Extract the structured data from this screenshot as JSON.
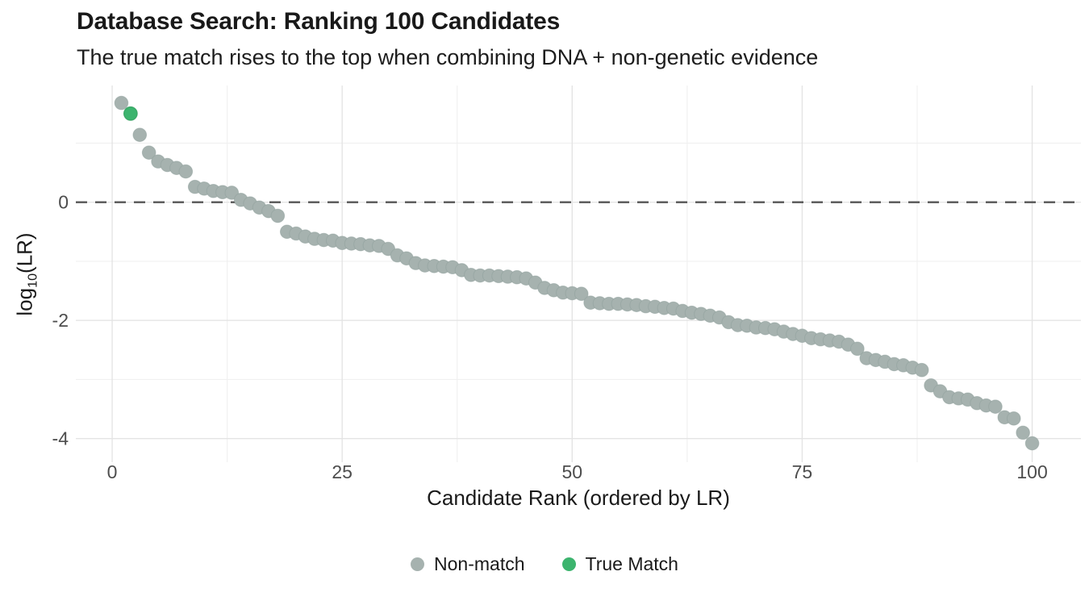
{
  "header": {
    "title": "Database Search: Ranking 100 Candidates",
    "subtitle": "The true match rises to the top when combining DNA + non-genetic evidence"
  },
  "chart_data": {
    "type": "scatter",
    "title": "Database Search: Ranking 100 Candidates",
    "subtitle": "The true match rises to the top when combining DNA + non-genetic evidence",
    "xlabel": "Candidate Rank (ordered by LR)",
    "ylabel": "log10(LR)",
    "ylabel_parts": {
      "base": "log",
      "subscript": "10",
      "rest": "(LR)"
    },
    "xlim": [
      -3.95,
      105.3
    ],
    "ylim": [
      -4.4,
      1.975
    ],
    "x_ticks": [
      0,
      25,
      50,
      75,
      100
    ],
    "x_minor_ticks": [
      12.5,
      37.5,
      62.5,
      87.5
    ],
    "y_ticks": [
      0,
      -2,
      -4
    ],
    "y_minor_ticks": [
      1,
      -1,
      -3
    ],
    "grid": true,
    "legend_position": "bottom",
    "reference_line": {
      "y": 0,
      "style": "dashed"
    },
    "true_match_rank": 2,
    "values": [
      1.68,
      1.5,
      1.14,
      0.84,
      0.69,
      0.63,
      0.58,
      0.52,
      0.26,
      0.23,
      0.19,
      0.17,
      0.16,
      0.04,
      -0.02,
      -0.09,
      -0.15,
      -0.23,
      -0.5,
      -0.53,
      -0.58,
      -0.62,
      -0.64,
      -0.65,
      -0.69,
      -0.7,
      -0.71,
      -0.73,
      -0.74,
      -0.79,
      -0.9,
      -0.95,
      -1.03,
      -1.07,
      -1.08,
      -1.09,
      -1.1,
      -1.15,
      -1.23,
      -1.24,
      -1.24,
      -1.25,
      -1.26,
      -1.27,
      -1.29,
      -1.36,
      -1.45,
      -1.49,
      -1.53,
      -1.54,
      -1.55,
      -1.7,
      -1.71,
      -1.72,
      -1.72,
      -1.73,
      -1.74,
      -1.76,
      -1.77,
      -1.79,
      -1.8,
      -1.84,
      -1.87,
      -1.89,
      -1.92,
      -1.95,
      -2.03,
      -2.08,
      -2.09,
      -2.12,
      -2.13,
      -2.15,
      -2.19,
      -2.23,
      -2.26,
      -2.3,
      -2.32,
      -2.34,
      -2.36,
      -2.41,
      -2.48,
      -2.64,
      -2.67,
      -2.7,
      -2.74,
      -2.76,
      -2.8,
      -2.84,
      -3.1,
      -3.2,
      -3.3,
      -3.32,
      -3.34,
      -3.4,
      -3.44,
      -3.46,
      -3.64,
      -3.66,
      -3.9,
      -4.08
    ],
    "legend": [
      {
        "label": "Non-match",
        "color": "#a6b2af"
      },
      {
        "label": "True Match",
        "color": "#3cb46e"
      }
    ],
    "colors": {
      "non_match_fill": "#a6b2af",
      "non_match_edge": "#90a09c",
      "true_match_fill": "#3cb46e",
      "true_match_edge": "#2e9e5b",
      "reference_line": "#555555",
      "grid_major": "#e4e4e4",
      "grid_minor": "#f0f0f0",
      "tick_label": "#4d4d4d",
      "text": "#1a1a1a"
    }
  }
}
